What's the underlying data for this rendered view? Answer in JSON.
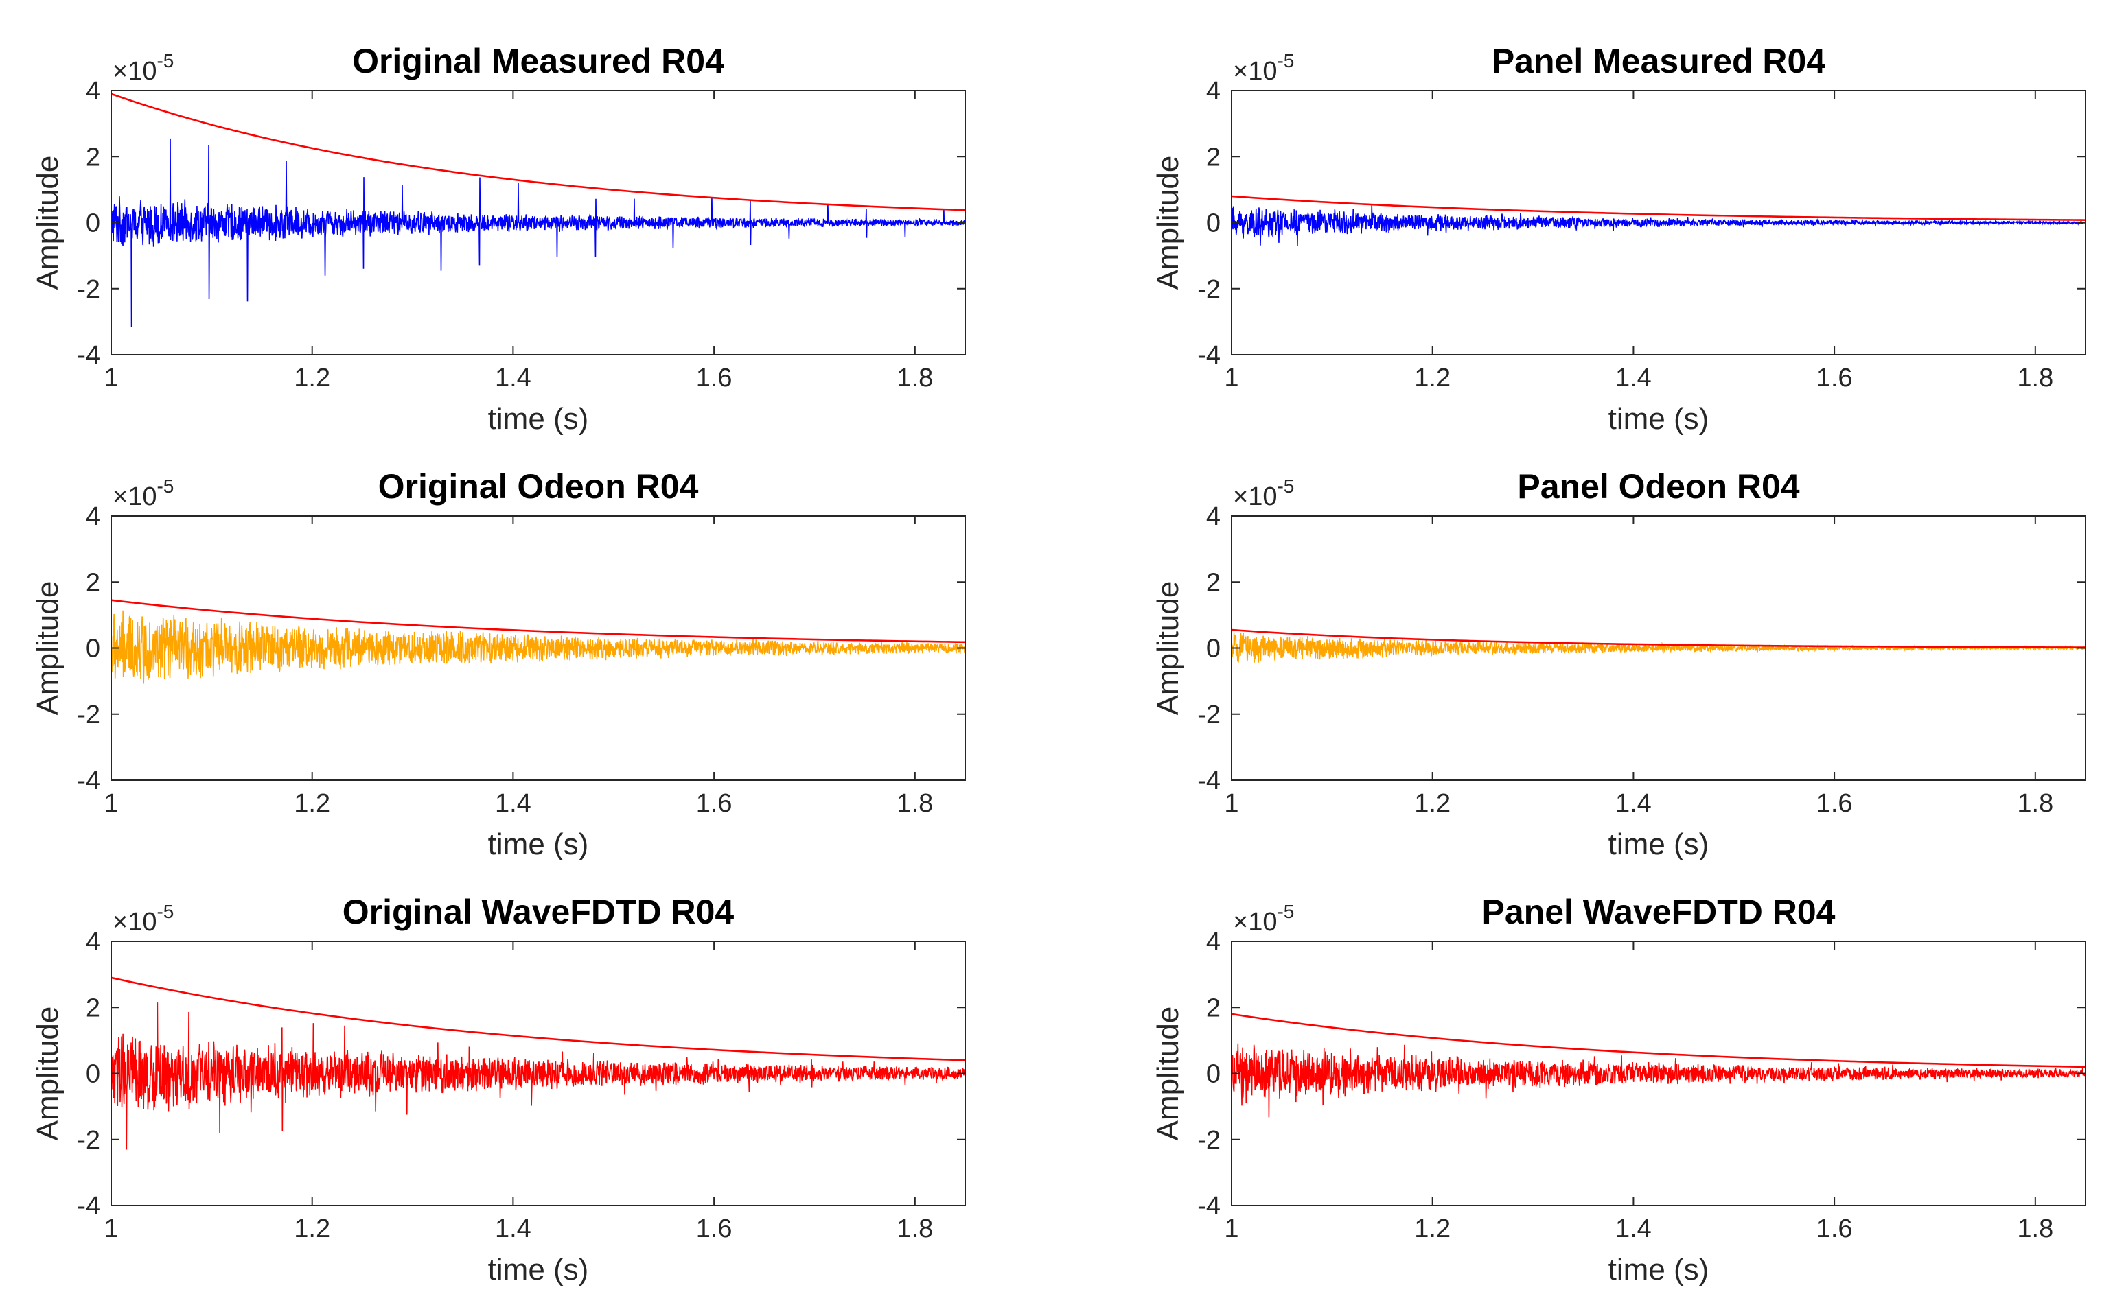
{
  "figure": {
    "layout": "3 rows x 2 columns"
  },
  "chart_data": [
    {
      "id": "orig-measured",
      "type": "line",
      "title": "Original Measured R04",
      "xlabel": "time (s)",
      "ylabel": "Amplitude",
      "xlim": [
        1,
        1.85
      ],
      "ylim": [
        -4,
        4
      ],
      "y_exponent": "×10",
      "y_exponent_power": "-5",
      "xticks": [
        1,
        1.2,
        1.4,
        1.6,
        1.8
      ],
      "xtick_labels": [
        "1",
        "1.2",
        "1.4",
        "1.6",
        "1.8"
      ],
      "yticks": [
        4,
        2,
        0,
        -2,
        -4
      ],
      "ytick_labels": [
        "4",
        "2",
        "0",
        "-2",
        "-4"
      ],
      "series": [
        {
          "name": "signal",
          "color": "#0000ff",
          "kind": "noise",
          "base_amp": 0.85,
          "decay": 2.5,
          "spike_amp": 3.8,
          "spike_start": 1.02,
          "spike_period": 0.0385
        },
        {
          "name": "envelope",
          "color": "#ff0000",
          "kind": "envelope",
          "a0": 3.9,
          "a1": 0.38
        }
      ]
    },
    {
      "id": "panel-measured",
      "type": "line",
      "title": "Panel Measured R04",
      "xlabel": "time (s)",
      "ylabel": "Amplitude",
      "xlim": [
        1,
        1.85
      ],
      "ylim": [
        -4,
        4
      ],
      "y_exponent": "×10",
      "y_exponent_power": "-5",
      "xticks": [
        1,
        1.2,
        1.4,
        1.6,
        1.8
      ],
      "xtick_labels": [
        "1",
        "1.2",
        "1.4",
        "1.6",
        "1.8"
      ],
      "yticks": [
        4,
        2,
        0,
        -2,
        -4
      ],
      "ytick_labels": [
        "4",
        "2",
        "0",
        "-2",
        "-4"
      ],
      "series": [
        {
          "name": "signal",
          "color": "#0000ff",
          "kind": "noise",
          "base_amp": 0.55,
          "decay": 3.2,
          "spike_amp": 0.9,
          "spike_start": 1.01,
          "spike_period": 0.0185
        },
        {
          "name": "envelope",
          "color": "#ff0000",
          "kind": "envelope",
          "a0": 0.8,
          "a1": 0.08
        }
      ]
    },
    {
      "id": "orig-odeon",
      "type": "line",
      "title": "Original Odeon R04",
      "xlabel": "time (s)",
      "ylabel": "Amplitude",
      "xlim": [
        1,
        1.85
      ],
      "ylim": [
        -4,
        4
      ],
      "y_exponent": "×10",
      "y_exponent_power": "-5",
      "xticks": [
        1,
        1.2,
        1.4,
        1.6,
        1.8
      ],
      "xtick_labels": [
        "1",
        "1.2",
        "1.4",
        "1.6",
        "1.8"
      ],
      "yticks": [
        4,
        2,
        0,
        -2,
        -4
      ],
      "ytick_labels": [
        "4",
        "2",
        "0",
        "-2",
        "-4"
      ],
      "series": [
        {
          "name": "signal",
          "color": "#ffa500",
          "kind": "noise",
          "base_amp": 1.25,
          "decay": 2.4,
          "spike_amp": 0,
          "spike_start": 1.0,
          "spike_period": 1.0
        },
        {
          "name": "envelope",
          "color": "#ff0000",
          "kind": "envelope",
          "a0": 1.45,
          "a1": 0.18
        }
      ]
    },
    {
      "id": "panel-odeon",
      "type": "line",
      "title": "Panel Odeon R04",
      "xlabel": "time (s)",
      "ylabel": "Amplitude",
      "xlim": [
        1,
        1.85
      ],
      "ylim": [
        -4,
        4
      ],
      "y_exponent": "×10",
      "y_exponent_power": "-5",
      "xticks": [
        1,
        1.2,
        1.4,
        1.6,
        1.8
      ],
      "xtick_labels": [
        "1",
        "1.2",
        "1.4",
        "1.6",
        "1.8"
      ],
      "yticks": [
        4,
        2,
        0,
        -2,
        -4
      ],
      "ytick_labels": [
        "4",
        "2",
        "0",
        "-2",
        "-4"
      ],
      "series": [
        {
          "name": "signal",
          "color": "#ffa500",
          "kind": "noise",
          "base_amp": 0.5,
          "decay": 3.0,
          "spike_amp": 0,
          "spike_start": 1.0,
          "spike_period": 1.0
        },
        {
          "name": "envelope",
          "color": "#ff0000",
          "kind": "envelope",
          "a0": 0.55,
          "a1": 0.02
        }
      ]
    },
    {
      "id": "orig-wavefdtd",
      "type": "line",
      "title": "Original WaveFDTD R04",
      "xlabel": "time (s)",
      "ylabel": "Amplitude",
      "xlim": [
        1,
        1.85
      ],
      "ylim": [
        -4,
        4
      ],
      "y_exponent": "×10",
      "y_exponent_power": "-5",
      "xticks": [
        1,
        1.2,
        1.4,
        1.6,
        1.8
      ],
      "xtick_labels": [
        "1",
        "1.2",
        "1.4",
        "1.6",
        "1.8"
      ],
      "yticks": [
        4,
        2,
        0,
        -2,
        -4
      ],
      "ytick_labels": [
        "4",
        "2",
        "0",
        "-2",
        "-4"
      ],
      "series": [
        {
          "name": "signal",
          "color": "#ff0000",
          "kind": "noise",
          "base_amp": 1.35,
          "decay": 2.2,
          "spike_amp": 2.6,
          "spike_start": 1.015,
          "spike_period": 0.031
        },
        {
          "name": "envelope",
          "color": "#ff0000",
          "kind": "envelope",
          "a0": 2.9,
          "a1": 0.4
        }
      ]
    },
    {
      "id": "panel-wavefdtd",
      "type": "line",
      "title": "Panel WaveFDTD R04",
      "xlabel": "time (s)",
      "ylabel": "Amplitude",
      "xlim": [
        1,
        1.85
      ],
      "ylim": [
        -4,
        4
      ],
      "y_exponent": "×10",
      "y_exponent_power": "-5",
      "xticks": [
        1,
        1.2,
        1.4,
        1.6,
        1.8
      ],
      "xtick_labels": [
        "1",
        "1.2",
        "1.4",
        "1.6",
        "1.8"
      ],
      "yticks": [
        4,
        2,
        0,
        -2,
        -4
      ],
      "ytick_labels": [
        "4",
        "2",
        "0",
        "-2",
        "-4"
      ],
      "series": [
        {
          "name": "signal",
          "color": "#ff0000",
          "kind": "noise",
          "base_amp": 0.95,
          "decay": 2.3,
          "spike_amp": 1.5,
          "spike_start": 1.01,
          "spike_period": 0.027
        },
        {
          "name": "envelope",
          "color": "#ff0000",
          "kind": "envelope",
          "a0": 1.8,
          "a1": 0.2
        }
      ]
    }
  ]
}
